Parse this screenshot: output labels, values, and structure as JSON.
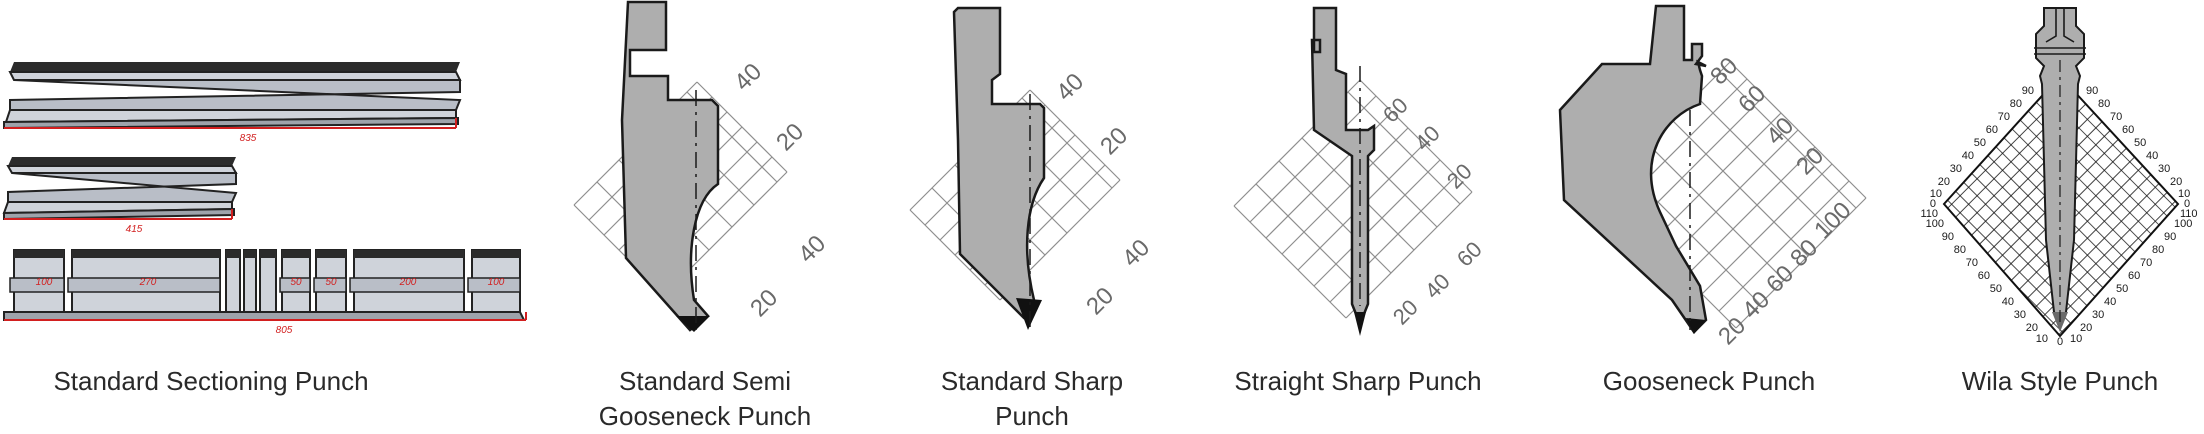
{
  "punches": [
    {
      "name": "Standard Sectioning Punch",
      "lengths": {
        "top": "835",
        "middle": "415",
        "bottom": "805"
      },
      "segments": [
        "100",
        "270",
        "",
        "",
        "",
        "50",
        "50",
        "200",
        "100"
      ]
    },
    {
      "name": "Standard Semi Gooseneck Punch",
      "angle_labels": [
        "40",
        "20",
        "40",
        "20"
      ]
    },
    {
      "name": "Standard Sharp Punch",
      "angle_labels": [
        "40",
        "20",
        "40",
        "20"
      ]
    },
    {
      "name": "Straight Sharp Punch",
      "angle_labels": [
        "60",
        "40",
        "20",
        "60",
        "40",
        "20"
      ]
    },
    {
      "name": "Gooseneck Punch",
      "angle_labels": [
        "80",
        "60",
        "40",
        "20",
        "100",
        "80",
        "60",
        "40",
        "20"
      ]
    },
    {
      "name": "Wila Style Punch",
      "scale_left": [
        "90",
        "80",
        "70",
        "60",
        "50",
        "40",
        "30",
        "20",
        "10",
        "0",
        "110",
        "100",
        "90",
        "80",
        "70",
        "60",
        "50",
        "40",
        "30",
        "20",
        "10"
      ],
      "scale_right": [
        "90",
        "80",
        "70",
        "60",
        "50",
        "40",
        "30",
        "20",
        "10",
        "0",
        "110",
        "100",
        "90",
        "80",
        "70",
        "60",
        "50",
        "40",
        "30",
        "20",
        "10"
      ],
      "scale_bottom": "0"
    }
  ],
  "colors": {
    "tool_fill": "#aeaeae",
    "bar_fill": "#cfd3da",
    "dim_line": "#d21f1f",
    "grid": "#8f8f8f",
    "text": "#2a2a2a"
  }
}
